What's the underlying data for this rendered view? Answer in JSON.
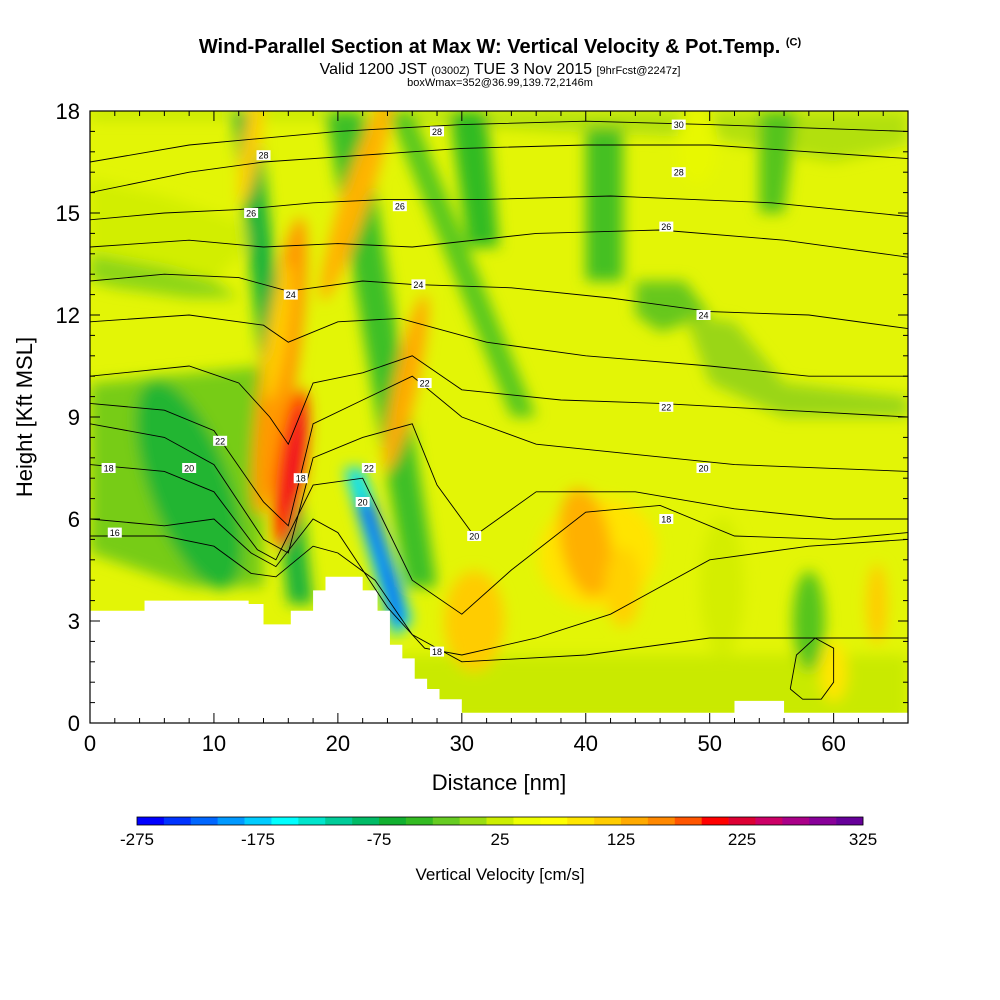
{
  "titles": {
    "main": "Wind-Parallel Section at Max W: Vertical Velocity & Pot.Temp.",
    "main_suffix": "(C)",
    "valid_prefix": "Valid 1200 JST",
    "valid_zulu": "(0300Z)",
    "valid_date": "TUE 3 Nov 2015",
    "forecast": "[9hrFcst@2247z]",
    "box": "boxWmax=352@36.99,139.72,2146m"
  },
  "chart_data": {
    "type": "heatmap",
    "xlabel": "Distance [nm]",
    "ylabel": "Height [Kft MSL]",
    "xlim": [
      0,
      66
    ],
    "ylim": [
      0,
      18
    ],
    "xticks": [
      0,
      10,
      20,
      30,
      40,
      50,
      60
    ],
    "yticks": [
      0,
      3,
      6,
      9,
      12,
      15,
      18
    ],
    "colorbar": {
      "label": "Vertical Velocity [cm/s]",
      "range": [
        -275,
        325
      ],
      "ticks": [
        -275,
        -175,
        -75,
        25,
        125,
        225,
        325
      ],
      "colors": [
        "#0000ff",
        "#0033ff",
        "#0066ff",
        "#0099ff",
        "#00ccff",
        "#00ffff",
        "#00e5cc",
        "#00cc99",
        "#00bb66",
        "#11b030",
        "#33bb22",
        "#66cc22",
        "#99dd11",
        "#ccee00",
        "#eeff00",
        "#ffff00",
        "#ffe600",
        "#ffcc00",
        "#ffaa00",
        "#ff8800",
        "#ff5500",
        "#ff0000",
        "#dd0033",
        "#cc0066",
        "#aa0088",
        "#880099",
        "#660099"
      ]
    },
    "terrain": [
      [
        0,
        3.3
      ],
      [
        4.4,
        3.3
      ],
      [
        4.4,
        3.6
      ],
      [
        12.8,
        3.6
      ],
      [
        12.8,
        3.5
      ],
      [
        14,
        3.5
      ],
      [
        14,
        2.9
      ],
      [
        16.2,
        2.9
      ],
      [
        16.2,
        3.3
      ],
      [
        18,
        3.3
      ],
      [
        18,
        3.9
      ],
      [
        19,
        3.9
      ],
      [
        19,
        4.3
      ],
      [
        22,
        4.3
      ],
      [
        22,
        3.9
      ],
      [
        23.2,
        3.9
      ],
      [
        23.2,
        3.3
      ],
      [
        24.2,
        3.3
      ],
      [
        24.2,
        2.3
      ],
      [
        25.2,
        2.3
      ],
      [
        25.2,
        1.9
      ],
      [
        26.2,
        1.9
      ],
      [
        26.2,
        1.3
      ],
      [
        27.2,
        1.3
      ],
      [
        27.2,
        1.0
      ],
      [
        28.2,
        1.0
      ],
      [
        28.2,
        0.7
      ],
      [
        30,
        0.7
      ],
      [
        30,
        0.3
      ],
      [
        52,
        0.3
      ],
      [
        52,
        0.65
      ],
      [
        56,
        0.65
      ],
      [
        56,
        0.3
      ],
      [
        66,
        0.3
      ]
    ],
    "theta_labels": [
      {
        "v": "28",
        "x": 14,
        "y": 16.7
      },
      {
        "v": "28",
        "x": 28,
        "y": 17.4
      },
      {
        "v": "30",
        "x": 47.5,
        "y": 17.6
      },
      {
        "v": "28",
        "x": 47.5,
        "y": 16.2
      },
      {
        "v": "26",
        "x": 13,
        "y": 15
      },
      {
        "v": "26",
        "x": 25,
        "y": 15.2
      },
      {
        "v": "26",
        "x": 46.5,
        "y": 14.6
      },
      {
        "v": "24",
        "x": 16.2,
        "y": 12.6
      },
      {
        "v": "24",
        "x": 26.5,
        "y": 12.9
      },
      {
        "v": "24",
        "x": 49.5,
        "y": 12
      },
      {
        "v": "22",
        "x": 27,
        "y": 10
      },
      {
        "v": "22",
        "x": 46.5,
        "y": 9.3
      },
      {
        "v": "22",
        "x": 10.5,
        "y": 8.3
      },
      {
        "v": "22",
        "x": 22.5,
        "y": 7.5
      },
      {
        "v": "20",
        "x": 8,
        "y": 7.5
      },
      {
        "v": "20",
        "x": 22,
        "y": 6.5
      },
      {
        "v": "20",
        "x": 31,
        "y": 5.5
      },
      {
        "v": "20",
        "x": 49.5,
        "y": 7.5
      },
      {
        "v": "18",
        "x": 1.5,
        "y": 7.5
      },
      {
        "v": "18",
        "x": 17,
        "y": 7.2
      },
      {
        "v": "18",
        "x": 46.5,
        "y": 6
      },
      {
        "v": "18",
        "x": 28,
        "y": 2.1
      },
      {
        "v": "16",
        "x": 2,
        "y": 5.6
      }
    ]
  }
}
